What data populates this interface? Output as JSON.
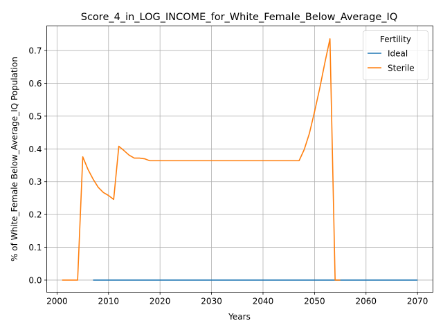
{
  "chart_data": {
    "type": "line",
    "title": "Score_4_in_LOG_INCOME_for_White_Female_Below_Average_IQ",
    "xlabel": "Years",
    "ylabel": "% of White_Female Below_Average_IQ Population",
    "xlim": [
      1998,
      2073
    ],
    "ylim": [
      -0.037,
      0.775
    ],
    "xticks": [
      2000,
      2010,
      2020,
      2030,
      2040,
      2050,
      2060,
      2070
    ],
    "yticks": [
      0.0,
      0.1,
      0.2,
      0.3,
      0.4,
      0.5,
      0.6,
      0.7
    ],
    "ytick_labels": [
      "0.0",
      "0.1",
      "0.2",
      "0.3",
      "0.4",
      "0.5",
      "0.6",
      "0.7"
    ],
    "grid": true,
    "legend": {
      "title": "Fertility",
      "position": "top-right"
    },
    "series": [
      {
        "name": "Ideal",
        "color": "#1f77b4",
        "x": [
          2007,
          2070
        ],
        "y": [
          0.0,
          0.0
        ]
      },
      {
        "name": "Sterile",
        "color": "#ff7f0e",
        "x": [
          2001,
          2002,
          2003,
          2004,
          2005,
          2006,
          2007,
          2008,
          2009,
          2010,
          2011,
          2012,
          2013,
          2014,
          2015,
          2016,
          2017,
          2018,
          2019,
          2020,
          2025,
          2030,
          2035,
          2040,
          2045,
          2047,
          2048,
          2049,
          2050,
          2051,
          2052,
          2053,
          2054,
          2055
        ],
        "y": [
          0.0,
          0.0,
          0.0,
          0.0,
          0.376,
          0.338,
          0.308,
          0.283,
          0.267,
          0.258,
          0.246,
          0.408,
          0.395,
          0.381,
          0.372,
          0.372,
          0.37,
          0.364,
          0.364,
          0.364,
          0.364,
          0.364,
          0.364,
          0.364,
          0.364,
          0.364,
          0.398,
          0.447,
          0.513,
          0.584,
          0.662,
          0.736,
          0.0,
          0.0
        ]
      }
    ]
  }
}
